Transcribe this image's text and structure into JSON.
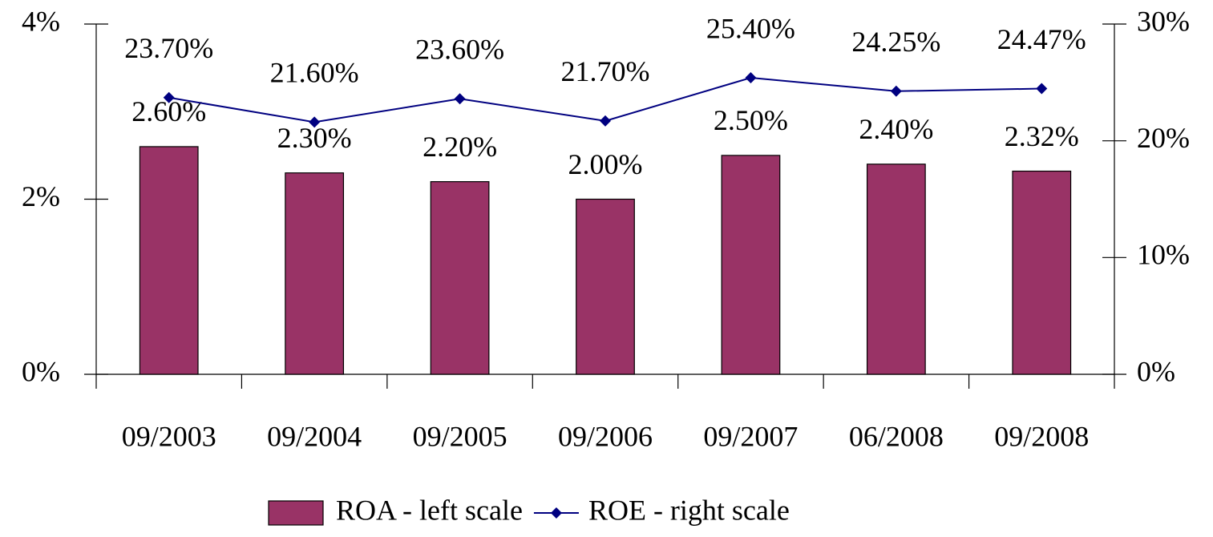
{
  "chart_data": {
    "type": "bar-line",
    "categories": [
      "09/2003",
      "09/2004",
      "09/2005",
      "09/2006",
      "09/2007",
      "06/2008",
      "09/2008"
    ],
    "series": [
      {
        "name": "ROA - left scale",
        "type": "bar",
        "color": "#993366",
        "values": [
          2.6,
          2.3,
          2.2,
          2.0,
          2.5,
          2.4,
          2.32
        ],
        "value_labels": [
          "2.60%",
          "2.30%",
          "2.20%",
          "2.00%",
          "2.50%",
          "2.40%",
          "2.32%"
        ]
      },
      {
        "name": "ROE - right scale",
        "type": "line",
        "axis": "y2",
        "color": "#000080",
        "values": [
          23.7,
          21.6,
          23.6,
          21.7,
          25.4,
          24.25,
          24.47
        ],
        "value_labels": [
          "23.70%",
          "21.60%",
          "23.60%",
          "21.70%",
          "25.40%",
          "24.25%",
          "24.47%"
        ]
      }
    ],
    "ylim": [
      0,
      4
    ],
    "yticks": [
      {
        "value": 0,
        "label": "0%"
      },
      {
        "value": 2,
        "label": "2%"
      },
      {
        "value": 4,
        "label": "4%"
      }
    ],
    "y2lim": [
      0,
      30
    ],
    "y2ticks": [
      {
        "value": 0,
        "label": "0%"
      },
      {
        "value": 10,
        "label": "10%"
      },
      {
        "value": 20,
        "label": "20%"
      },
      {
        "value": 30,
        "label": "30%"
      }
    ],
    "legend": "bottom"
  }
}
